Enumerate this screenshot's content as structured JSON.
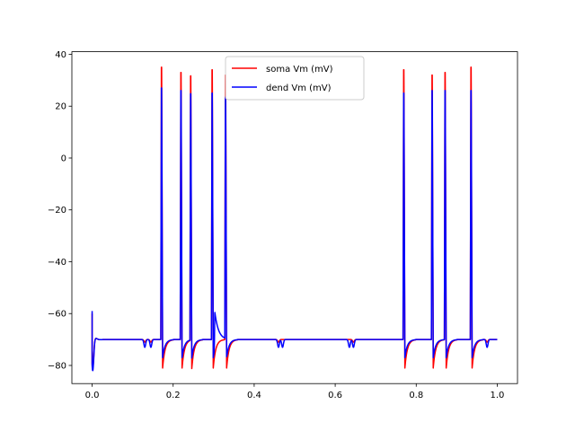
{
  "chart_data": {
    "type": "line",
    "title": "",
    "xlabel": "",
    "ylabel": "",
    "xlim": [
      -0.05,
      1.05
    ],
    "ylim": [
      -87,
      41
    ],
    "grid": false,
    "legend_placement": "top-center",
    "xticks": [
      0.0,
      0.2,
      0.4,
      0.6,
      0.8,
      1.0
    ],
    "xtick_labels": [
      "0.0",
      "0.2",
      "0.4",
      "0.6",
      "0.8",
      "1.0"
    ],
    "yticks": [
      -80,
      -60,
      -40,
      -20,
      0,
      20,
      40
    ],
    "ytick_labels": [
      "−80",
      "−60",
      "−40",
      "−20",
      "0",
      "20",
      "40"
    ],
    "rest": -70,
    "series": [
      {
        "name": "soma Vm (mV)",
        "color": "#ff0000",
        "start_peak": -60,
        "start_min": -81,
        "spikes": [
          {
            "t": 0.171,
            "peak": 35,
            "trough": -81
          },
          {
            "t": 0.219,
            "peak": 33,
            "trough": -81
          },
          {
            "t": 0.243,
            "peak": 32,
            "trough": -81
          },
          {
            "t": 0.296,
            "peak": 34,
            "trough": -81
          },
          {
            "t": 0.329,
            "peak": 32,
            "trough": -81
          },
          {
            "t": 0.769,
            "peak": 34,
            "trough": -81
          },
          {
            "t": 0.839,
            "peak": 32,
            "trough": -81
          },
          {
            "t": 0.871,
            "peak": 33,
            "trough": -81
          },
          {
            "t": 0.935,
            "peak": 35,
            "trough": -81
          }
        ],
        "dips": [
          {
            "t": 0.13,
            "v": -71
          },
          {
            "t": 0.145,
            "v": -71
          },
          {
            "t": 0.46,
            "v": -71
          },
          {
            "t": 0.645,
            "v": -71
          },
          {
            "t": 0.975,
            "v": -71
          }
        ]
      },
      {
        "name": "dend Vm (mV)",
        "color": "#0000ff",
        "start_peak": -59,
        "start_min": -82,
        "spikes": [
          {
            "t": 0.171,
            "peak": 27,
            "trough": -77
          },
          {
            "t": 0.219,
            "peak": 26,
            "trough": -77
          },
          {
            "t": 0.243,
            "peak": 25,
            "trough": -77
          },
          {
            "t": 0.296,
            "peak": 25,
            "trough": -77
          },
          {
            "t": 0.329,
            "peak": 23,
            "trough": -77
          },
          {
            "t": 0.769,
            "peak": 25,
            "trough": -77
          },
          {
            "t": 0.839,
            "peak": 26,
            "trough": -77
          },
          {
            "t": 0.871,
            "peak": 26,
            "trough": -77
          },
          {
            "t": 0.935,
            "peak": 26,
            "trough": -77
          }
        ],
        "dips": [
          {
            "t": 0.13,
            "v": -73
          },
          {
            "t": 0.145,
            "v": -73
          },
          {
            "t": 0.46,
            "v": -73
          },
          {
            "t": 0.47,
            "v": -73
          },
          {
            "t": 0.635,
            "v": -73
          },
          {
            "t": 0.645,
            "v": -73
          },
          {
            "t": 0.975,
            "v": -73
          }
        ],
        "bumps": [
          {
            "t": 0.303,
            "v": -56
          }
        ]
      }
    ]
  }
}
